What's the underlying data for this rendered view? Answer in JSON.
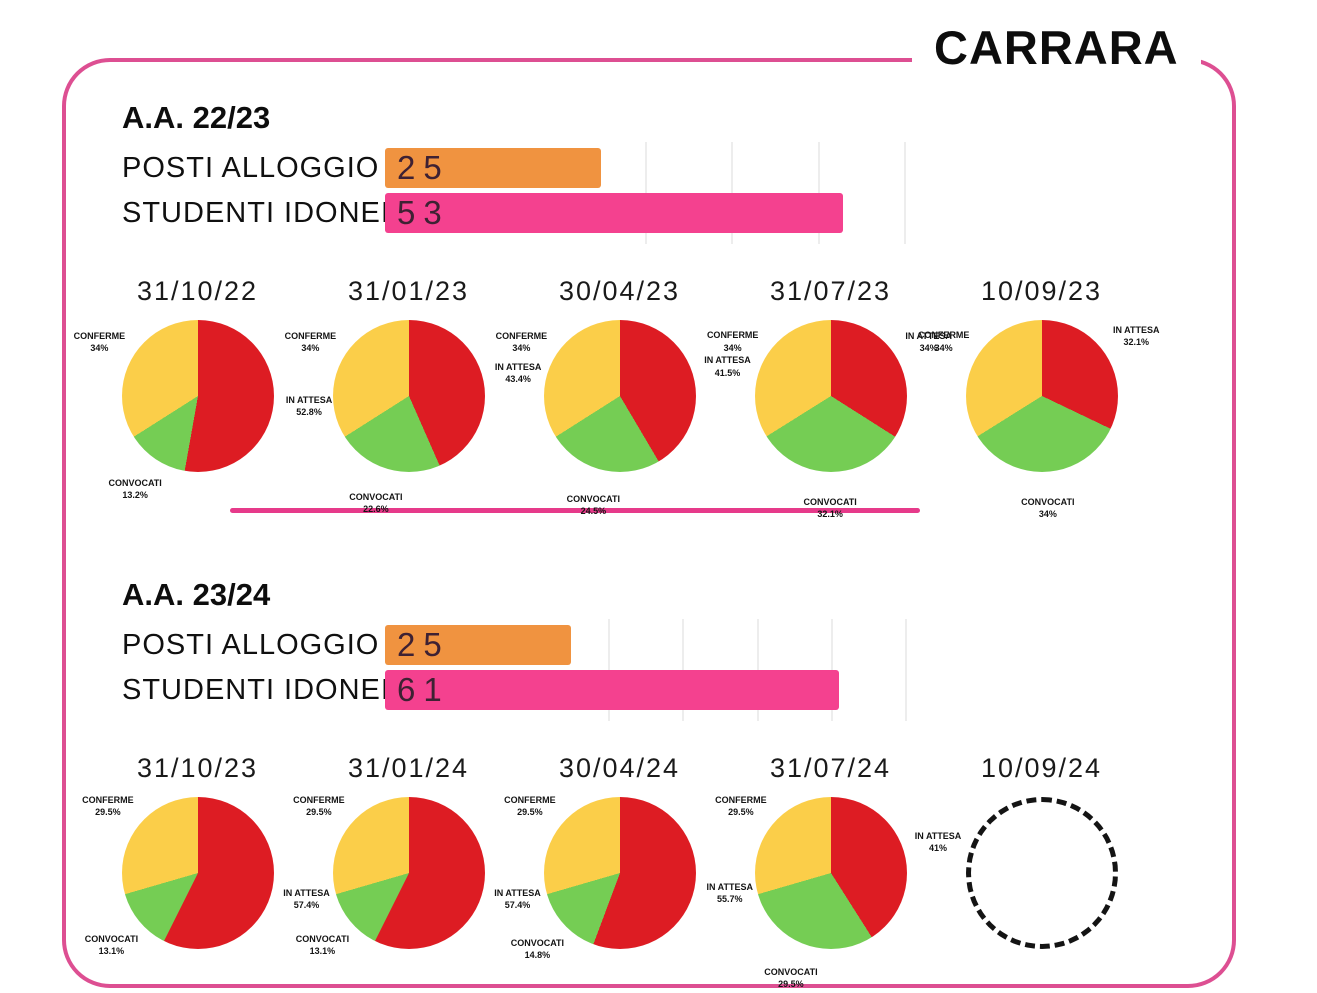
{
  "page_title": "CARRARA",
  "colors": {
    "card_border": "#dd4f92",
    "divider": "#e63a8a",
    "bar_orange": "#f09340",
    "bar_pink": "#f4418f",
    "bar_value_text": "#3e2133",
    "slices": {
      "IN ATTESA": "#dd1c23",
      "CONVOCATI": "#75cd54",
      "CONFERME": "#fbce49"
    },
    "empty_pie_border": "#141414"
  },
  "chart_data": {
    "sections": [
      {
        "year_label": "A.A. 22/23",
        "divider": true,
        "bar_chart": {
          "type": "bar",
          "categories": [
            "POSTI ALLOGGIO",
            "STUDENTI IDONEI"
          ],
          "values": [
            25,
            53
          ],
          "bar_colors": [
            "#f09340",
            "#f4418f"
          ],
          "xlim": [
            0,
            63
          ],
          "gridlines": [
            30,
            40,
            50,
            60
          ]
        },
        "pie_charts": [
          {
            "type": "pie",
            "date": "31/10/22",
            "slices": [
              {
                "label": "IN ATTESA",
                "value": 52.8,
                "display": "52.8%"
              },
              {
                "label": "CONVOCATI",
                "value": 13.2,
                "display": "13.2%"
              },
              {
                "label": "CONFERME",
                "value": 34,
                "display": "34%"
              }
            ]
          },
          {
            "type": "pie",
            "date": "31/01/23",
            "slices": [
              {
                "label": "IN ATTESA",
                "value": 43.4,
                "display": "43.4%"
              },
              {
                "label": "CONVOCATI",
                "value": 22.6,
                "display": "22.6%"
              },
              {
                "label": "CONFERME",
                "value": 34,
                "display": "34%"
              }
            ]
          },
          {
            "type": "pie",
            "date": "30/04/23",
            "slices": [
              {
                "label": "IN ATTESA",
                "value": 41.5,
                "display": "41.5%"
              },
              {
                "label": "CONVOCATI",
                "value": 24.5,
                "display": "24.5%"
              },
              {
                "label": "CONFERME",
                "value": 34,
                "display": "34%"
              }
            ]
          },
          {
            "type": "pie",
            "date": "31/07/23",
            "slices": [
              {
                "label": "IN ATTESA",
                "value": 34,
                "display": "34%"
              },
              {
                "label": "CONVOCATI",
                "value": 32.1,
                "display": "32.1%"
              },
              {
                "label": "CONFERME",
                "value": 34,
                "display": "34%"
              }
            ]
          },
          {
            "type": "pie",
            "date": "10/09/23",
            "slices": [
              {
                "label": "IN ATTESA",
                "value": 32.1,
                "display": "32.1%"
              },
              {
                "label": "CONVOCATI",
                "value": 34,
                "display": "34%"
              },
              {
                "label": "CONFERME",
                "value": 34,
                "display": "34%"
              }
            ]
          }
        ]
      },
      {
        "year_label": "A.A. 23/24",
        "divider": false,
        "bar_chart": {
          "type": "bar",
          "categories": [
            "POSTI ALLOGGIO",
            "STUDENTI IDONEI"
          ],
          "values": [
            25,
            61
          ],
          "bar_colors": [
            "#f09340",
            "#f4418f"
          ],
          "xlim": [
            0,
            73.3
          ],
          "gridlines": [
            30,
            40,
            50,
            60,
            70
          ]
        },
        "pie_charts": [
          {
            "type": "pie",
            "date": "31/10/23",
            "slices": [
              {
                "label": "IN ATTESA",
                "value": 57.4,
                "display": "57.4%"
              },
              {
                "label": "CONVOCATI",
                "value": 13.1,
                "display": "13.1%"
              },
              {
                "label": "CONFERME",
                "value": 29.5,
                "display": "29.5%"
              }
            ]
          },
          {
            "type": "pie",
            "date": "31/01/24",
            "slices": [
              {
                "label": "IN ATTESA",
                "value": 57.4,
                "display": "57.4%"
              },
              {
                "label": "CONVOCATI",
                "value": 13.1,
                "display": "13.1%"
              },
              {
                "label": "CONFERME",
                "value": 29.5,
                "display": "29.5%"
              }
            ]
          },
          {
            "type": "pie",
            "date": "30/04/24",
            "slices": [
              {
                "label": "IN ATTESA",
                "value": 55.7,
                "display": "55.7%"
              },
              {
                "label": "CONVOCATI",
                "value": 14.8,
                "display": "14.8%"
              },
              {
                "label": "CONFERME",
                "value": 29.5,
                "display": "29.5%"
              }
            ]
          },
          {
            "type": "pie",
            "date": "31/07/24",
            "slices": [
              {
                "label": "IN ATTESA",
                "value": 41,
                "display": "41%"
              },
              {
                "label": "CONVOCATI",
                "value": 29.5,
                "display": "29.5%"
              },
              {
                "label": "CONFERME",
                "value": 29.5,
                "display": "29.5%"
              }
            ]
          },
          {
            "type": "pie",
            "date": "10/09/24",
            "empty": true,
            "slices": []
          }
        ]
      }
    ]
  }
}
